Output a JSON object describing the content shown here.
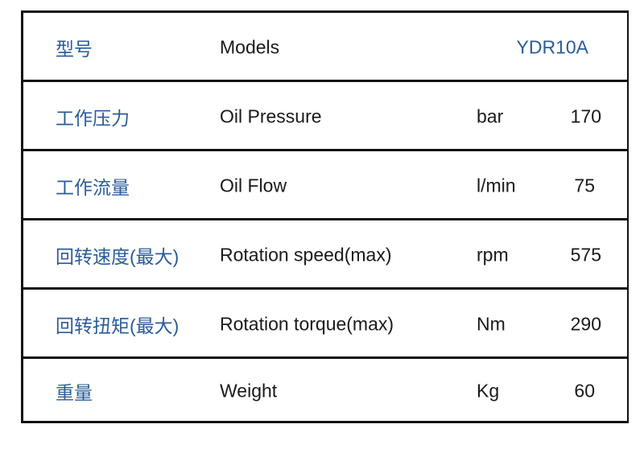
{
  "rows": [
    {
      "cn": "型号",
      "en": "Models",
      "unit": "",
      "value": "YDR10A"
    },
    {
      "cn": "工作压力",
      "en": "Oil Pressure",
      "unit": "bar",
      "value": "170"
    },
    {
      "cn": "工作流量",
      "en": "Oil Flow",
      "unit": "l/min",
      "value": "75"
    },
    {
      "cn": "回转速度(最大)",
      "en": "Rotation speed(max)",
      "unit": "rpm",
      "value": "575"
    },
    {
      "cn": "回转扭矩(最大)",
      "en": "Rotation torque(max)",
      "unit": "Nm",
      "value": "290"
    },
    {
      "cn": "重量",
      "en": "Weight",
      "unit": "Kg",
      "value": "60"
    }
  ],
  "colors": {
    "label_blue": "#2b5c9a",
    "border": "#111111"
  }
}
